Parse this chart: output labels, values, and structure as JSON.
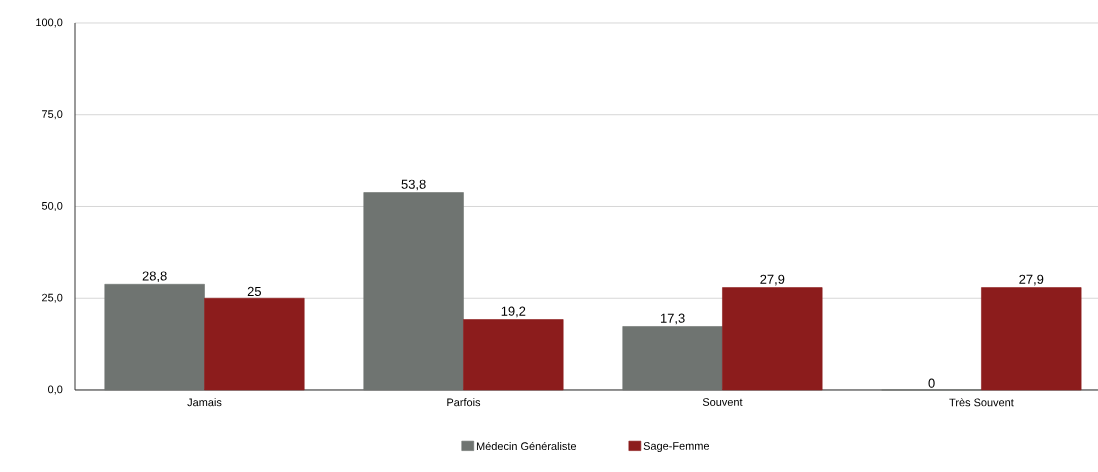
{
  "chart_data": {
    "type": "bar",
    "categories": [
      "Jamais",
      "Parfois",
      "Souvent",
      "Très Souvent"
    ],
    "series": [
      {
        "name": "Médecin Généraliste",
        "color": "#6f7471",
        "values": [
          28.8,
          53.8,
          17.3,
          0
        ],
        "value_labels": [
          "28,8",
          "53,8",
          "17,3",
          "0"
        ]
      },
      {
        "name": "Sage-Femme",
        "color": "#8c1c1c",
        "values": [
          25,
          19.2,
          27.9,
          27.9
        ],
        "value_labels": [
          "25",
          "19,2",
          "27,9",
          "27,9"
        ]
      }
    ],
    "ylim": [
      0,
      100
    ],
    "yticks": [
      {
        "value": 0,
        "label": "0,0"
      },
      {
        "value": 25,
        "label": "25,0"
      },
      {
        "value": 50,
        "label": "50,0"
      },
      {
        "value": 75,
        "label": "75,0"
      },
      {
        "value": 100,
        "label": "100,0"
      }
    ],
    "grid": "y",
    "legend": "bottom"
  }
}
